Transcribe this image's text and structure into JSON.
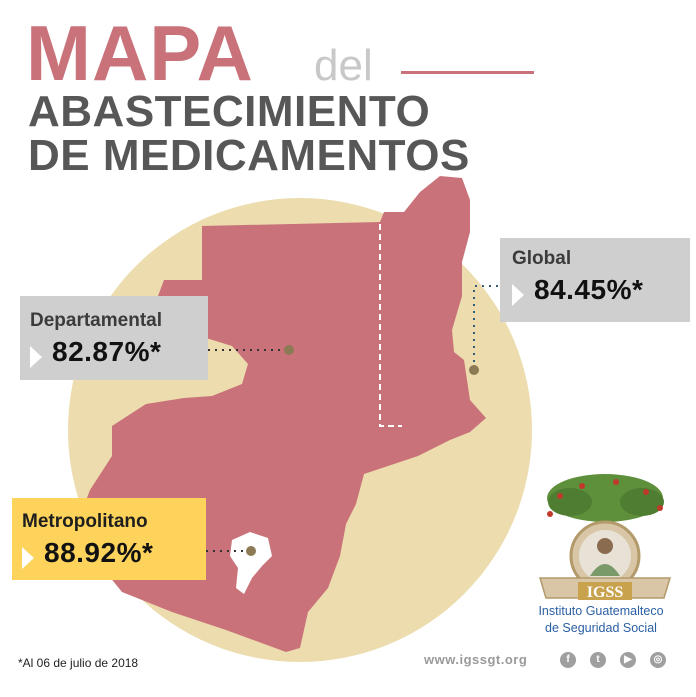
{
  "title": {
    "word_mapa": "MAPA",
    "word_del": "del",
    "line2": "ABASTECIMIENTO",
    "line3": "DE MEDICAMENTOS"
  },
  "stats": {
    "global": {
      "label": "Global",
      "value": "84.45%*"
    },
    "departamental": {
      "label": "Departamental",
      "value": "82.87%*"
    },
    "metropolitano": {
      "label": "Metropolitano",
      "value": "88.92%*"
    }
  },
  "footnote": "*Al 06 de julio de 2018",
  "website": "www.igssgt.org",
  "social_icons": [
    "facebook-icon",
    "twitter-icon",
    "youtube-icon",
    "instagram-icon"
  ],
  "logo": {
    "badge_text": "IGSS",
    "name_line1": "Instituto Guatemalteco",
    "name_line2": "de Seguridad Social"
  },
  "colors": {
    "map": "#c9727a",
    "circle": "#ecdcae",
    "title_accent": "#c9727a",
    "title_dark": "#575757",
    "box_gray": "#cfcfcf",
    "box_yellow": "#fdd35b",
    "marker": "#8c7a55",
    "logo_blue": "#2a5fa5"
  }
}
